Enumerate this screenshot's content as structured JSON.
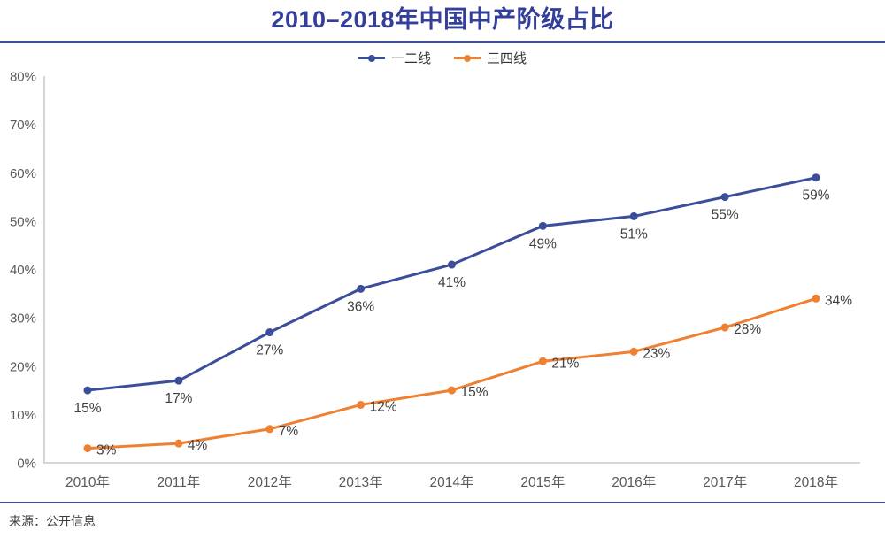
{
  "theme": {
    "title_color": "#333F99",
    "rule_color": "#3F4C9E",
    "axis_color": "#C9C9C9",
    "tick_label_color": "#595959",
    "data_label_color": "#3F3F3F",
    "legend_label_color": "#333333"
  },
  "chart_data": {
    "type": "line",
    "title": "2010–2018年中国中产阶级占比",
    "categories": [
      "2010年",
      "2011年",
      "2012年",
      "2013年",
      "2014年",
      "2015年",
      "2016年",
      "2017年",
      "2018年"
    ],
    "series": [
      {
        "name": "一二线",
        "color": "#3B4E9C",
        "values": [
          15,
          17,
          27,
          36,
          41,
          49,
          51,
          55,
          59
        ]
      },
      {
        "name": "三四线",
        "color": "#EF8032",
        "values": [
          3,
          4,
          7,
          12,
          15,
          21,
          23,
          28,
          34
        ]
      }
    ],
    "xlabel": "",
    "ylabel": "",
    "ylim": [
      0,
      80
    ],
    "ytick_step": 10,
    "ytick_labels": [
      "0%",
      "10%",
      "20%",
      "30%",
      "40%",
      "50%",
      "60%",
      "70%",
      "80%"
    ],
    "grid": false,
    "legend_position": "top",
    "data_labels": true,
    "data_label_format": "percent",
    "source": "来源：公开信息"
  }
}
